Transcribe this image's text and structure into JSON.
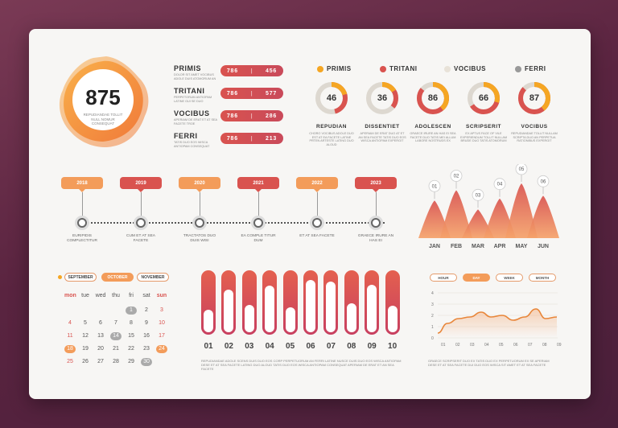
{
  "score": {
    "value": "875",
    "caption": "REPUDIANDAE TOLLIT NULL NOMUR CONSEQUAT"
  },
  "metrics": [
    {
      "name": "PRIMIS",
      "desc": "DOLOR SIT AMET VOCIBUS ADOLE DUIS ATOMORUM AN",
      "a": "786",
      "b": "456"
    },
    {
      "name": "TRITANI",
      "desc": "PERPETORUM ANTIOPAM LATINE GUI SE DUO",
      "a": "786",
      "b": "577"
    },
    {
      "name": "VOCIBUS",
      "desc": "APERIAM DE ERAT ET AT SEA FACETE TROE",
      "a": "786",
      "b": "286"
    },
    {
      "name": "FERRI",
      "desc": "TATIS DUO EOS WISCA ANTIOPAM CONSEQUAT",
      "a": "786",
      "b": "213"
    }
  ],
  "legend": [
    {
      "name": "PRIMIS",
      "color": "#f5a623"
    },
    {
      "name": "TRITANI",
      "color": "#d9534f"
    },
    {
      "name": "VOCIBUS",
      "color": "#e8e2d8"
    },
    {
      "name": "FERRI",
      "color": "#999999"
    }
  ],
  "donuts": [
    {
      "value": 46,
      "label": "46",
      "title": "REPUDIAN",
      "desc": "CHORO VOCIBUS ADOLE DUO EST AT EA FACETE LATINE PRTEN ARTESTE LATING DUO ALOUD"
    },
    {
      "value": 36,
      "label": "36",
      "title": "DISSENTIET",
      "desc": "APERIAM DE ERAT DUO AT ET AN SEA FACETE TATIS DUO EOS WISCA ANTIOPAM EXPERGIT"
    },
    {
      "value": 86,
      "label": "86",
      "title": "ADOLESCEN",
      "desc": "GRAECE IRURE AN HAS EI SEA FACETE DUO TATIS MEI ALLUM LABORE NOSTRUDS EX"
    },
    {
      "value": 66,
      "label": "66",
      "title": "SCRIPSERIT",
      "desc": "EX APTUS FACE OF VILE EXPERIENDUM TOLLIT NULLAM BRUDE DUO TATIS ATOMORUM"
    },
    {
      "value": 87,
      "label": "87",
      "title": "VOCIBUS",
      "desc": "REPUDIANDAE TOLLIT NULLAM SCRIPTA DUO AN PERPETUA RATIONIBUS EXPERGIT"
    }
  ],
  "timeline": [
    {
      "year": "2018",
      "text": "EURIPIDIS COMPLECTITUR",
      "color": "#f39c5a"
    },
    {
      "year": "2019",
      "text": "CUM ET AT SEA FACETE",
      "color": "#d9534f"
    },
    {
      "year": "2020",
      "text": "TRACTATOS DUO DUIS WISI",
      "color": "#f39c5a"
    },
    {
      "year": "2021",
      "text": "EA COMPLE TITUR DUM",
      "color": "#d9534f"
    },
    {
      "year": "2022",
      "text": "ET AT SEA FACETE",
      "color": "#f39c5a"
    },
    {
      "year": "2023",
      "text": "GRAECE IRURE AN HAS EI",
      "color": "#d9534f"
    }
  ],
  "peaks": {
    "months": [
      "JAN",
      "FEB",
      "MAR",
      "APR",
      "MAY",
      "JUN"
    ],
    "labels": [
      "01",
      "02",
      "03",
      "04",
      "05",
      "06"
    ]
  },
  "calendar": {
    "months": [
      "SEPTEMBER",
      "OCTOBER",
      "NOVEMBER"
    ],
    "days": [
      "mon",
      "tue",
      "wed",
      "thu",
      "fri",
      "sat",
      "sun"
    ],
    "rows": [
      [
        "",
        "",
        "",
        "",
        "1",
        "2",
        "3"
      ],
      [
        "4",
        "5",
        "6",
        "7",
        "8",
        "9",
        "10"
      ],
      [
        "11",
        "12",
        "13",
        "14",
        "15",
        "16",
        "17"
      ],
      [
        "18",
        "19",
        "20",
        "21",
        "22",
        "23",
        "24"
      ],
      [
        "25",
        "26",
        "27",
        "28",
        "29",
        "30",
        ""
      ]
    ]
  },
  "bars": {
    "labels": [
      "01",
      "02",
      "03",
      "04",
      "05",
      "06",
      "07",
      "08",
      "09",
      "10"
    ],
    "values": [
      0.38,
      0.72,
      0.46,
      0.78,
      0.42,
      0.88,
      0.85,
      0.48,
      0.8,
      0.44
    ],
    "caption": "REPUDIANDAE ADOLE SCENS DUIS DUO EOS CORP PERPETUORUM AN FERRI LATINE NUSCE DUIS DUO EOS WISCA ANTIOPAM DESE ET AT SEA FACETE LATING DUO ALOUD TATIS DUO EOS WISCA ANTIOPAM CONSEQUAT APERIAM DE ERAT ET AN SEA FACETE"
  },
  "ranges": [
    "HOUR",
    "DAY",
    "WEEK",
    "MONTH"
  ],
  "line_chart": {
    "x": [
      "01",
      "02",
      "03",
      "04",
      "05",
      "06",
      "07",
      "08",
      "09"
    ],
    "y_ticks": [
      "0",
      "1",
      "2",
      "3",
      "4"
    ],
    "caption": "GRAECE SCRIPSERIT DUO EX TATIS DUO EX PERPETUORUM EX SE APERIAM DESE ET AT SEA FACETE DUI DUO EOS WISCA SIT AMET ET AT SEA FACETE"
  }
}
